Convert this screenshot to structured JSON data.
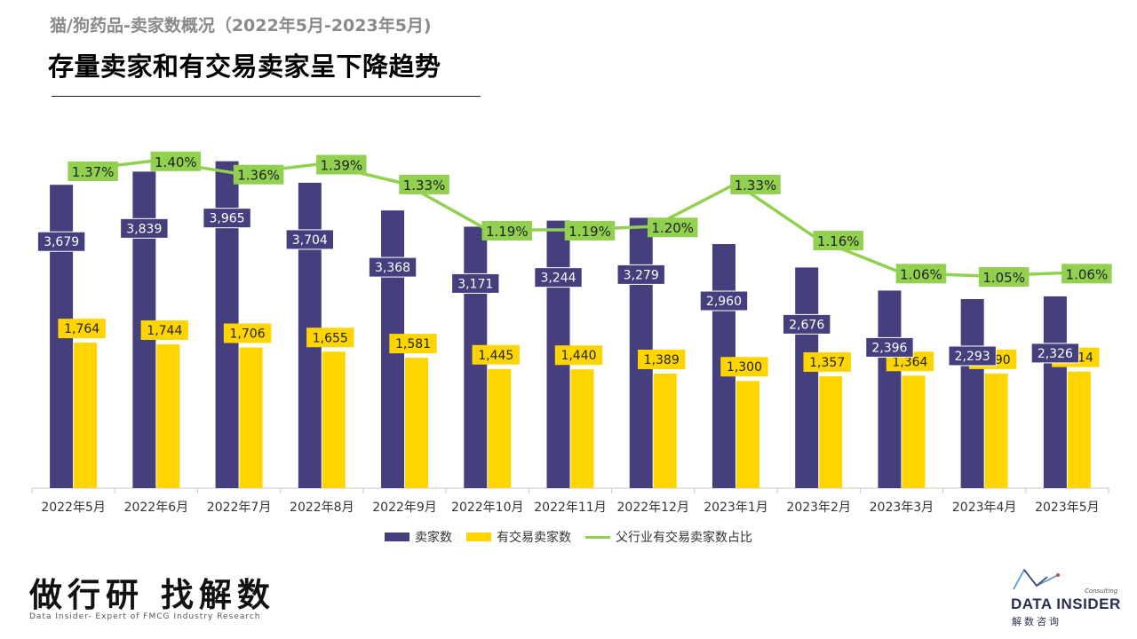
{
  "header": {
    "subtitle": "猫/狗药品-卖家数概况（2022年5月-2023年5月)",
    "title": "存量卖家和有交易卖家呈下降趋势"
  },
  "chart_data": {
    "type": "bar",
    "categories": [
      "2022年5月",
      "2022年6月",
      "2022年7月",
      "2022年8月",
      "2022年9月",
      "2022年10月",
      "2022年11月",
      "2022年12月",
      "2023年1月",
      "2023年2月",
      "2023年3月",
      "2023年4月",
      "2023年5月"
    ],
    "series": [
      {
        "name": "卖家数",
        "type": "bar",
        "color": "#453f7e",
        "values": [
          3679,
          3839,
          3965,
          3704,
          3368,
          3171,
          3244,
          3279,
          2960,
          2676,
          2396,
          2293,
          2326
        ],
        "labels": [
          "3,679",
          "3,839",
          "3,965",
          "3,704",
          "3,368",
          "3,171",
          "3,244",
          "3,279",
          "2,960",
          "2,676",
          "2,396",
          "2,293",
          "2,326"
        ]
      },
      {
        "name": "有交易卖家数",
        "type": "bar",
        "color": "#ffd500",
        "values": [
          1764,
          1744,
          1706,
          1655,
          1581,
          1445,
          1440,
          1389,
          1300,
          1357,
          1364,
          1390,
          1414
        ],
        "labels": [
          "1,764",
          "1,744",
          "1,706",
          "1,655",
          "1,581",
          "1,445",
          "1,440",
          "1,389",
          "1,300",
          "1,357",
          "1,364",
          "1,390",
          "1,414"
        ]
      },
      {
        "name": "父行业有交易卖家数占比",
        "type": "line",
        "color": "#92d050",
        "values": [
          1.37,
          1.4,
          1.36,
          1.39,
          1.33,
          1.19,
          1.19,
          1.2,
          1.33,
          1.16,
          1.06,
          1.05,
          1.06
        ],
        "labels": [
          "1.37%",
          "1.40%",
          "1.36%",
          "1.39%",
          "1.33%",
          "1.19%",
          "1.19%",
          "1.20%",
          "1.33%",
          "1.16%",
          "1.06%",
          "1.05%",
          "1.06%"
        ]
      }
    ],
    "legend_position": "bottom",
    "grid": false
  },
  "footer": {
    "slogan": "做行研 找解数",
    "slogan_sub": "Data Insider- Expert of FMCG Industry Research",
    "logo_text": "DATA INSIDER",
    "logo_consulting": "Consulting",
    "logo_cn": "解数咨询"
  }
}
